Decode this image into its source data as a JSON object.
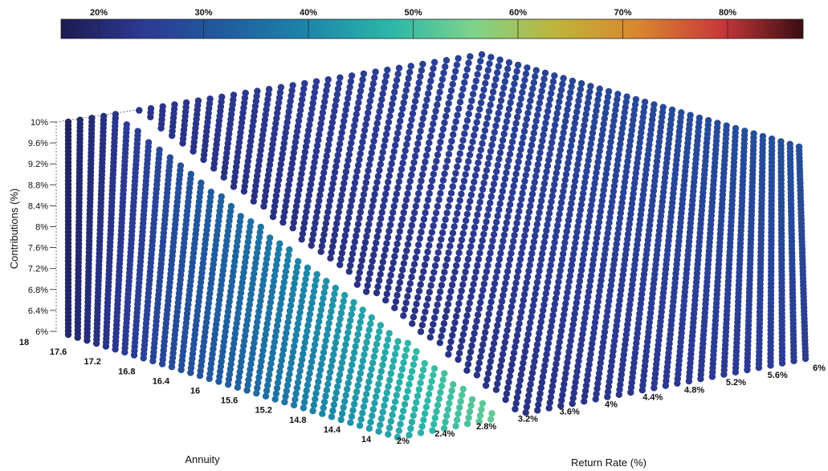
{
  "chart_data": {
    "type": "scatter",
    "subtype": "3d-surface-scatter",
    "title": "",
    "xlabel": "Return Rate (%)",
    "ylabel": "Annuity",
    "zlabel": "Contributions (%)",
    "x_ticks": [
      "2%",
      "2.4%",
      "2.8%",
      "3.2%",
      "3.6%",
      "4%",
      "4.4%",
      "4.8%",
      "5.2%",
      "5.6%",
      "6%"
    ],
    "y_ticks": [
      "14",
      "14.4",
      "14.8",
      "15.2",
      "15.6",
      "16",
      "16.4",
      "16.8",
      "17.2",
      "17.6",
      "18"
    ],
    "z_ticks": [
      "6%",
      "6.4%",
      "6.8%",
      "7.2%",
      "7.6%",
      "8%",
      "8.4%",
      "8.8%",
      "9.2%",
      "9.6%",
      "10%"
    ],
    "x_range": [
      2,
      6
    ],
    "y_range": [
      14,
      18
    ],
    "z_range": [
      6,
      10
    ],
    "colorbar": {
      "ticks": [
        "20%",
        "30%",
        "40%",
        "50%",
        "60%",
        "70%",
        "80%"
      ],
      "placement": "top",
      "colormap": [
        "#1c1a4f",
        "#2d3a93",
        "#205c9e",
        "#1d86a9",
        "#2bb7a9",
        "#7ed38b",
        "#bfb43a",
        "#d9862f",
        "#c8393a",
        "#3a0d12"
      ]
    },
    "color_variable_estimate": {
      "description_axis": "color increases mainly with Return Rate and Contributions",
      "min": 15,
      "max": 85
    },
    "gap_band": "white diagonal gap separating two dot regions"
  }
}
